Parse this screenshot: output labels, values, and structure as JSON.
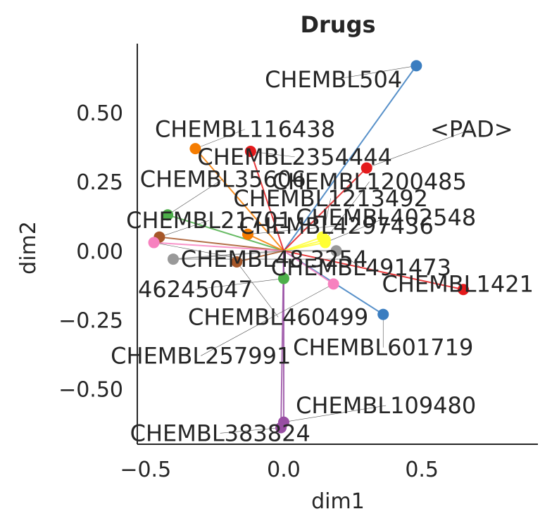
{
  "chart_data": {
    "type": "scatter",
    "title": "Drugs",
    "xlabel": "dim1",
    "ylabel": "dim2",
    "xlim": [
      -0.53,
      0.92
    ],
    "ylim": [
      -0.7,
      0.75
    ],
    "xticks": [
      -0.5,
      0.0,
      0.5
    ],
    "xtick_labels": [
      "−0.5",
      "0.0",
      "0.5"
    ],
    "yticks": [
      0.5,
      0.25,
      0.0,
      -0.25,
      -0.5
    ],
    "ytick_labels": [
      "0.50",
      "0.25",
      "0.00",
      "−0.25",
      "−0.50"
    ],
    "grid": false,
    "origin": [
      0.0,
      0.0
    ],
    "points": [
      {
        "label": "CHEMBL504",
        "x": 0.48,
        "y": 0.67,
        "color": "#3a7dc0",
        "label_xy": [
          0.18,
          0.62
        ]
      },
      {
        "label": "<PAD>",
        "x": 0.3,
        "y": 0.3,
        "color": "#e41a1c",
        "label_xy": [
          0.68,
          0.44
        ]
      },
      {
        "label": "CHEMBL116438",
        "x": -0.32,
        "y": 0.37,
        "color": "#f57c00",
        "label_xy": [
          -0.14,
          0.44
        ]
      },
      {
        "label": "CHEMBL2354444",
        "x": -0.12,
        "y": 0.36,
        "color": "#e41a1c",
        "label_xy": [
          0.04,
          0.34
        ]
      },
      {
        "label": "CHEMBL35606",
        "x": -0.42,
        "y": 0.13,
        "color": "#4daf4a",
        "label_xy": [
          -0.22,
          0.26
        ]
      },
      {
        "label": "CHEMBL1200485",
        "x": 0.15,
        "y": 0.04,
        "color": "#ffff33",
        "label_xy": [
          0.31,
          0.25
        ]
      },
      {
        "label": "CHEMBL1213492",
        "x": 0.14,
        "y": 0.05,
        "color": "#ffff33",
        "label_xy": [
          0.17,
          0.19
        ]
      },
      {
        "label": "CHEMBL402548",
        "x": 0.15,
        "y": 0.03,
        "color": "#ffff33",
        "label_xy": [
          0.37,
          0.12
        ]
      },
      {
        "label": "CHEMBL21701",
        "x": -0.45,
        "y": 0.05,
        "color": "#a65628",
        "label_xy": [
          -0.27,
          0.11
        ]
      },
      {
        "label": "CHEMBL4297436",
        "x": -0.13,
        "y": 0.06,
        "color": "#f57c00",
        "label_xy": [
          0.19,
          0.09
        ]
      },
      {
        "label": "CHEMBL48",
        "x": -0.47,
        "y": 0.03,
        "color": "#f781bf",
        "label_xy": [
          -0.15,
          -0.03
        ]
      },
      {
        "label": "3254",
        "x": -0.4,
        "y": -0.03,
        "color": "#999999",
        "label_xy": [
          0.2,
          -0.03
        ]
      },
      {
        "label": "CHEMBL491473",
        "x": 0.19,
        "y": 0.0,
        "color": "#999999",
        "label_xy": [
          0.28,
          -0.06
        ]
      },
      {
        "label": "CHEMBL1421",
        "x": 0.65,
        "y": -0.14,
        "color": "#e41a1c",
        "label_xy": [
          0.63,
          -0.12
        ]
      },
      {
        "label": "46245047",
        "x": 0.0,
        "y": -0.1,
        "color": "#4daf4a",
        "label_xy": [
          -0.32,
          -0.14
        ]
      },
      {
        "label": "CHEMBL460499",
        "x": -0.17,
        "y": -0.04,
        "color": "#a65628",
        "label_xy": [
          -0.02,
          -0.24
        ]
      },
      {
        "label": "CHEMBL601719",
        "x": 0.36,
        "y": -0.23,
        "color": "#3a7dc0",
        "label_xy": [
          0.36,
          -0.35
        ]
      },
      {
        "label": "CHEMBL257991",
        "x": 0.18,
        "y": -0.12,
        "color": "#f781bf",
        "label_xy": [
          -0.3,
          -0.38
        ]
      },
      {
        "label": "CHEMBL109480",
        "x": -0.0,
        "y": -0.62,
        "color": "#984ea3",
        "label_xy": [
          0.37,
          -0.56
        ]
      },
      {
        "label": "CHEMBL383824",
        "x": -0.01,
        "y": -0.64,
        "color": "#984ea3",
        "label_xy": [
          -0.23,
          -0.66
        ]
      }
    ]
  }
}
